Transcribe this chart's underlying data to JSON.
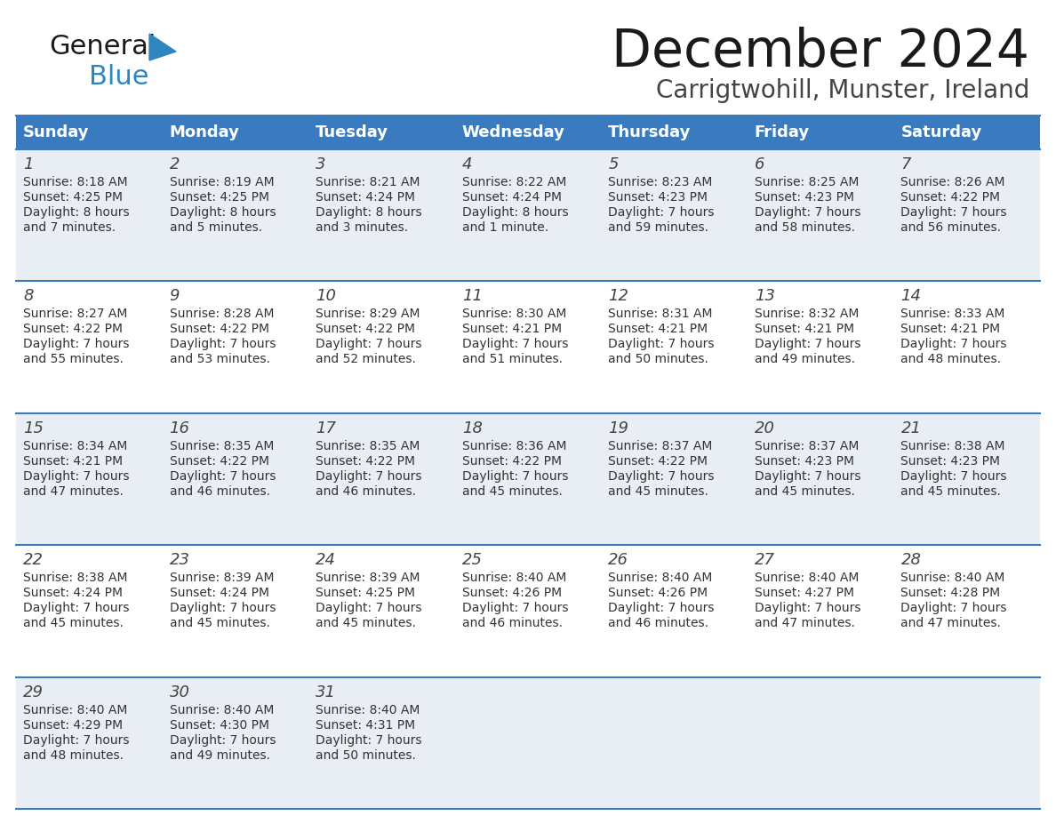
{
  "title": "December 2024",
  "subtitle": "Carrigtwohill, Munster, Ireland",
  "days_of_week": [
    "Sunday",
    "Monday",
    "Tuesday",
    "Wednesday",
    "Thursday",
    "Friday",
    "Saturday"
  ],
  "header_bg": "#3a7bbf",
  "header_text_color": "#ffffff",
  "row_bg_odd": "#e8eef4",
  "row_bg_even": "#ffffff",
  "cell_text_color": "#333333",
  "day_num_color": "#444444",
  "border_color": "#3a7bbf",
  "title_color": "#1a1a1a",
  "subtitle_color": "#444444",
  "logo_general_color": "#1a1a1a",
  "logo_blue_color": "#2e86c1",
  "calendar_data": [
    [
      {
        "day": 1,
        "sunrise": "8:18 AM",
        "sunset": "4:25 PM",
        "daylight": "8 hours\nand 7 minutes."
      },
      {
        "day": 2,
        "sunrise": "8:19 AM",
        "sunset": "4:25 PM",
        "daylight": "8 hours\nand 5 minutes."
      },
      {
        "day": 3,
        "sunrise": "8:21 AM",
        "sunset": "4:24 PM",
        "daylight": "8 hours\nand 3 minutes."
      },
      {
        "day": 4,
        "sunrise": "8:22 AM",
        "sunset": "4:24 PM",
        "daylight": "8 hours\nand 1 minute."
      },
      {
        "day": 5,
        "sunrise": "8:23 AM",
        "sunset": "4:23 PM",
        "daylight": "7 hours\nand 59 minutes."
      },
      {
        "day": 6,
        "sunrise": "8:25 AM",
        "sunset": "4:23 PM",
        "daylight": "7 hours\nand 58 minutes."
      },
      {
        "day": 7,
        "sunrise": "8:26 AM",
        "sunset": "4:22 PM",
        "daylight": "7 hours\nand 56 minutes."
      }
    ],
    [
      {
        "day": 8,
        "sunrise": "8:27 AM",
        "sunset": "4:22 PM",
        "daylight": "7 hours\nand 55 minutes."
      },
      {
        "day": 9,
        "sunrise": "8:28 AM",
        "sunset": "4:22 PM",
        "daylight": "7 hours\nand 53 minutes."
      },
      {
        "day": 10,
        "sunrise": "8:29 AM",
        "sunset": "4:22 PM",
        "daylight": "7 hours\nand 52 minutes."
      },
      {
        "day": 11,
        "sunrise": "8:30 AM",
        "sunset": "4:21 PM",
        "daylight": "7 hours\nand 51 minutes."
      },
      {
        "day": 12,
        "sunrise": "8:31 AM",
        "sunset": "4:21 PM",
        "daylight": "7 hours\nand 50 minutes."
      },
      {
        "day": 13,
        "sunrise": "8:32 AM",
        "sunset": "4:21 PM",
        "daylight": "7 hours\nand 49 minutes."
      },
      {
        "day": 14,
        "sunrise": "8:33 AM",
        "sunset": "4:21 PM",
        "daylight": "7 hours\nand 48 minutes."
      }
    ],
    [
      {
        "day": 15,
        "sunrise": "8:34 AM",
        "sunset": "4:21 PM",
        "daylight": "7 hours\nand 47 minutes."
      },
      {
        "day": 16,
        "sunrise": "8:35 AM",
        "sunset": "4:22 PM",
        "daylight": "7 hours\nand 46 minutes."
      },
      {
        "day": 17,
        "sunrise": "8:35 AM",
        "sunset": "4:22 PM",
        "daylight": "7 hours\nand 46 minutes."
      },
      {
        "day": 18,
        "sunrise": "8:36 AM",
        "sunset": "4:22 PM",
        "daylight": "7 hours\nand 45 minutes."
      },
      {
        "day": 19,
        "sunrise": "8:37 AM",
        "sunset": "4:22 PM",
        "daylight": "7 hours\nand 45 minutes."
      },
      {
        "day": 20,
        "sunrise": "8:37 AM",
        "sunset": "4:23 PM",
        "daylight": "7 hours\nand 45 minutes."
      },
      {
        "day": 21,
        "sunrise": "8:38 AM",
        "sunset": "4:23 PM",
        "daylight": "7 hours\nand 45 minutes."
      }
    ],
    [
      {
        "day": 22,
        "sunrise": "8:38 AM",
        "sunset": "4:24 PM",
        "daylight": "7 hours\nand 45 minutes."
      },
      {
        "day": 23,
        "sunrise": "8:39 AM",
        "sunset": "4:24 PM",
        "daylight": "7 hours\nand 45 minutes."
      },
      {
        "day": 24,
        "sunrise": "8:39 AM",
        "sunset": "4:25 PM",
        "daylight": "7 hours\nand 45 minutes."
      },
      {
        "day": 25,
        "sunrise": "8:40 AM",
        "sunset": "4:26 PM",
        "daylight": "7 hours\nand 46 minutes."
      },
      {
        "day": 26,
        "sunrise": "8:40 AM",
        "sunset": "4:26 PM",
        "daylight": "7 hours\nand 46 minutes."
      },
      {
        "day": 27,
        "sunrise": "8:40 AM",
        "sunset": "4:27 PM",
        "daylight": "7 hours\nand 47 minutes."
      },
      {
        "day": 28,
        "sunrise": "8:40 AM",
        "sunset": "4:28 PM",
        "daylight": "7 hours\nand 47 minutes."
      }
    ],
    [
      {
        "day": 29,
        "sunrise": "8:40 AM",
        "sunset": "4:29 PM",
        "daylight": "7 hours\nand 48 minutes."
      },
      {
        "day": 30,
        "sunrise": "8:40 AM",
        "sunset": "4:30 PM",
        "daylight": "7 hours\nand 49 minutes."
      },
      {
        "day": 31,
        "sunrise": "8:40 AM",
        "sunset": "4:31 PM",
        "daylight": "7 hours\nand 50 minutes."
      },
      null,
      null,
      null,
      null
    ]
  ]
}
